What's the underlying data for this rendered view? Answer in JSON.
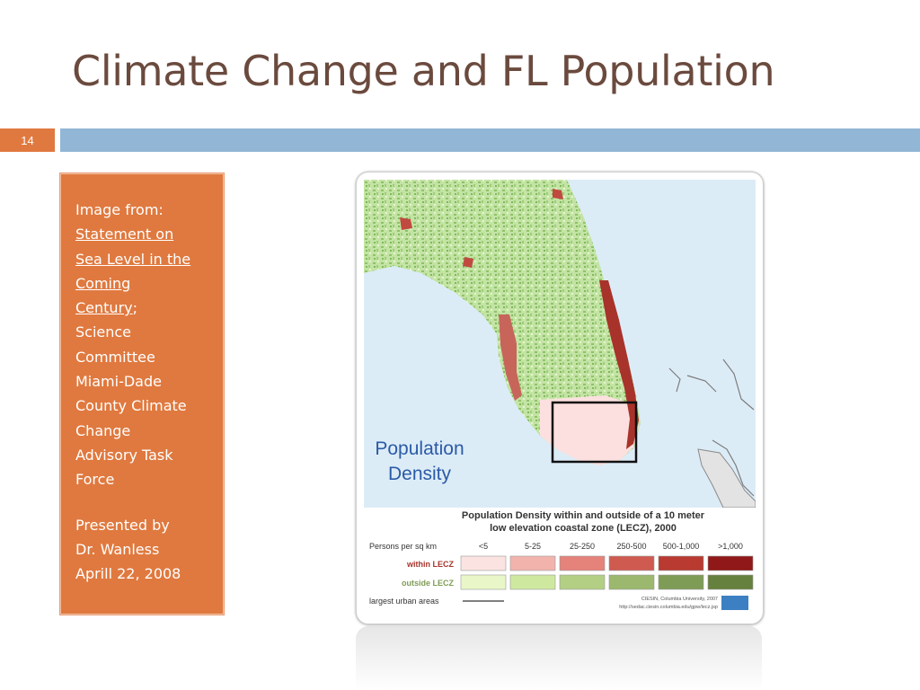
{
  "slide": {
    "title": "Climate Change and FL Population",
    "number": "14"
  },
  "source_box": {
    "image_from": "Image from:",
    "link_lines": [
      "Statement on",
      "Sea Level in the",
      "Coming",
      "Century"
    ],
    "link_suffix": ";",
    "credit_lines": [
      "Science",
      "Committee",
      "Miami-Dade",
      "County Climate",
      "Change",
      "Advisory Task",
      "Force"
    ],
    "presented_lines": [
      "Presented by",
      "Dr. Wanless",
      "Aprill 22, 2008"
    ]
  },
  "map": {
    "overlay_title_line1": "Population",
    "overlay_title_line2": "Density",
    "caption_line1": "Population Density within and outside of a 10 meter",
    "caption_line2": "low elevation coastal zone (LECZ), 2000",
    "legend_header": "Persons per sq km",
    "legend_categories": [
      "<5",
      "5-25",
      "25-250",
      "250-500",
      "500-1,000",
      ">1,000"
    ],
    "within_label": "within LECZ",
    "outside_label": "outside LECZ",
    "urban_label": "largest urban areas",
    "credit_line1": "CIESIN, Columbia University, 2007",
    "credit_line2": "http://sedac.ciesin.columbia.edu/gpw/lecz.jsp",
    "colors": {
      "within": [
        "#fbe3e1",
        "#f2b3ad",
        "#e5827a",
        "#cf5a50",
        "#b83a30",
        "#901818"
      ],
      "outside": [
        "#e9f7c8",
        "#cfe8a0",
        "#b3cf84",
        "#9bb86e",
        "#7f9c56",
        "#66803e"
      ],
      "water": "#dcecf7",
      "land": "#bfe0a0"
    }
  }
}
